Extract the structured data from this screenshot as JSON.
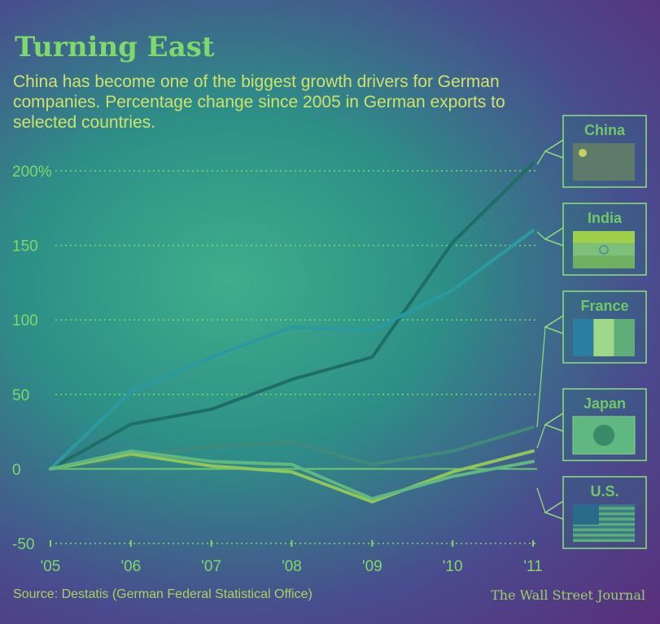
{
  "header": {
    "title": "Turning East",
    "subtitle": "China has become one of the biggest growth drivers for German companies. Percentage change since 2005 in German exports to selected countries."
  },
  "footer": {
    "source": "Source: Destatis (German Federal Statistical Office)",
    "credit": "The Wall Street Journal"
  },
  "chart_data": {
    "type": "line",
    "title": "Turning East",
    "x": [
      "'05",
      "'06",
      "'07",
      "'08",
      "'09",
      "'10",
      "'11"
    ],
    "y_tick_labels": [
      "200%",
      "150",
      "100",
      "50",
      "0",
      "-50"
    ],
    "y_ticks": [
      200,
      150,
      100,
      50,
      0,
      -50
    ],
    "ylim": [
      -50,
      200
    ],
    "grid": true,
    "legend": "right, labelled flags",
    "series": [
      {
        "name": "China",
        "values": [
          0,
          30,
          40,
          60,
          75,
          152,
          205
        ],
        "color": "#1f6e66"
      },
      {
        "name": "India",
        "values": [
          0,
          52,
          75,
          95,
          93,
          120,
          160
        ],
        "color": "#2a9aa0"
      },
      {
        "name": "France",
        "values": [
          0,
          8,
          15,
          18,
          3,
          12,
          28
        ],
        "color": "#3f8a7a"
      },
      {
        "name": "Japan",
        "values": [
          0,
          10,
          2,
          -2,
          -22,
          -2,
          12
        ],
        "color": "#8fc65a"
      },
      {
        "name": "U.S.",
        "values": [
          0,
          12,
          5,
          3,
          -20,
          -5,
          5
        ],
        "color": "#5fb880"
      }
    ]
  },
  "legend": {
    "items": [
      {
        "name": "China",
        "flag": "china-flag"
      },
      {
        "name": "India",
        "flag": "india-flag"
      },
      {
        "name": "France",
        "flag": "france-flag"
      },
      {
        "name": "Japan",
        "flag": "japan-flag"
      },
      {
        "name": "U.S.",
        "flag": "us-flag"
      }
    ]
  }
}
